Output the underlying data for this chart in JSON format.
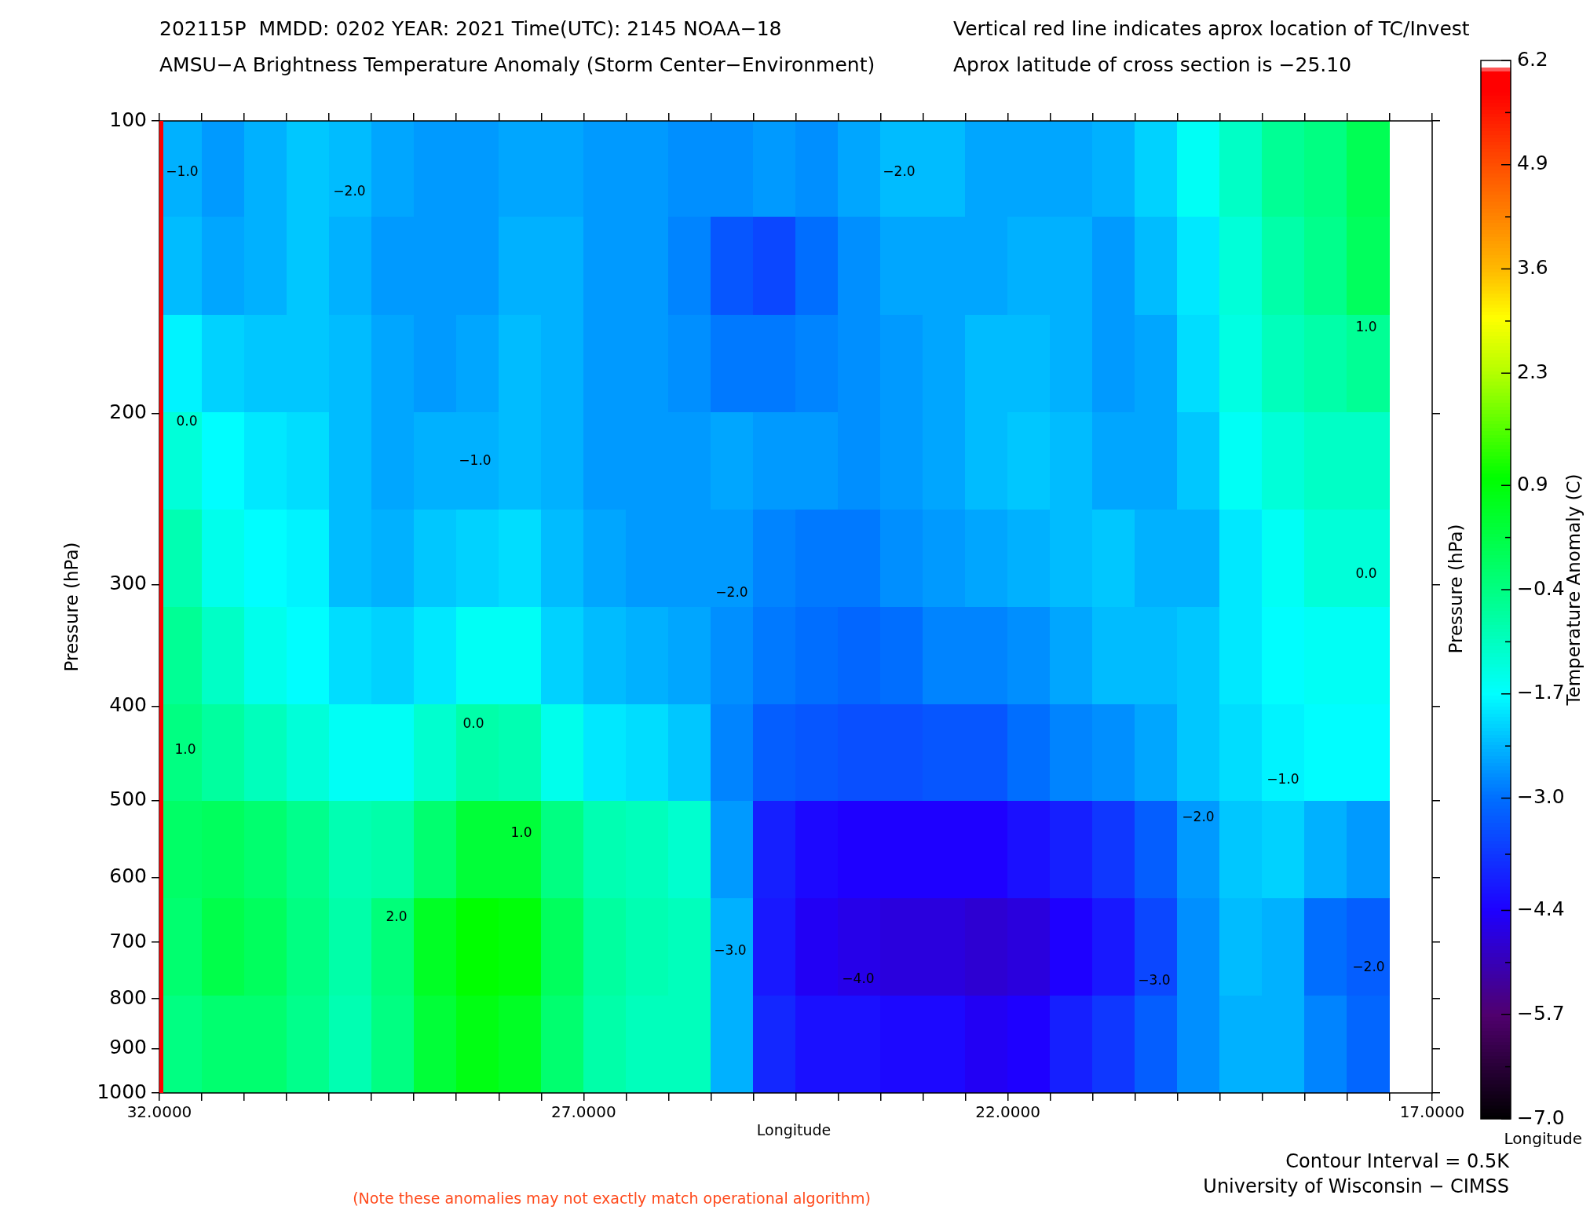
{
  "chart_data": {
    "type": "heatmap",
    "title": "202115P  MMDD: 0202 YEAR: 2021 Time(UTC): 2145 NOAA−18",
    "subtitle": "AMSU−A Brightness Temperature Anomaly (Storm Center−Environment)",
    "xlabel": "Longitude",
    "ylabel": "Pressure (hPa)",
    "y2label": "Pressure (hPa)",
    "clabel": "Temperature Anomaly (C)",
    "x": [
      31.75,
      31.25,
      30.75,
      30.25,
      29.75,
      29.25,
      28.75,
      28.25,
      27.75,
      27.25,
      26.75,
      26.25,
      25.75,
      25.25,
      24.75,
      24.25,
      23.75,
      23.25,
      22.75,
      22.25,
      21.75,
      21.25,
      20.75,
      20.25,
      19.75,
      19.25,
      18.75,
      18.25,
      17.75
    ],
    "y": [
      112,
      141,
      178,
      224,
      282,
      355,
      447,
      562,
      708,
      891
    ],
    "cells": [
      [
        -2.4,
        -2.6,
        -2.4,
        -2.2,
        -2.3,
        -2.5,
        -2.6,
        -2.6,
        -2.5,
        -2.5,
        -2.6,
        -2.6,
        -2.7,
        -2.7,
        -2.6,
        -2.7,
        -2.5,
        -2.3,
        -2.3,
        -2.5,
        -2.5,
        -2.5,
        -2.4,
        -2.1,
        -1.6,
        -1.1,
        -0.6,
        -0.4,
        0.1
      ],
      [
        -2.3,
        -2.5,
        -2.4,
        -2.2,
        -2.4,
        -2.6,
        -2.6,
        -2.6,
        -2.4,
        -2.4,
        -2.6,
        -2.6,
        -2.8,
        -3.3,
        -3.5,
        -3.0,
        -2.7,
        -2.5,
        -2.5,
        -2.5,
        -2.4,
        -2.4,
        -2.6,
        -2.3,
        -1.9,
        -1.3,
        -0.8,
        -0.5,
        0.0
      ],
      [
        -1.8,
        -2.1,
        -2.2,
        -2.2,
        -2.3,
        -2.5,
        -2.6,
        -2.5,
        -2.3,
        -2.4,
        -2.6,
        -2.6,
        -2.7,
        -2.9,
        -2.9,
        -2.8,
        -2.7,
        -2.6,
        -2.5,
        -2.3,
        -2.3,
        -2.4,
        -2.6,
        -2.5,
        -2.0,
        -1.4,
        -1.0,
        -0.8,
        -0.6
      ],
      [
        -1.3,
        -1.7,
        -1.9,
        -2.0,
        -2.3,
        -2.5,
        -2.4,
        -2.4,
        -2.3,
        -2.4,
        -2.6,
        -2.6,
        -2.6,
        -2.5,
        -2.6,
        -2.6,
        -2.7,
        -2.6,
        -2.5,
        -2.3,
        -2.2,
        -2.3,
        -2.5,
        -2.5,
        -2.2,
        -1.6,
        -1.3,
        -1.1,
        -1.1
      ],
      [
        -0.9,
        -1.5,
        -1.7,
        -1.8,
        -2.3,
        -2.4,
        -2.2,
        -2.1,
        -2.0,
        -2.3,
        -2.5,
        -2.6,
        -2.6,
        -2.6,
        -2.8,
        -2.9,
        -2.9,
        -2.7,
        -2.6,
        -2.5,
        -2.4,
        -2.3,
        -2.2,
        -2.4,
        -2.4,
        -1.9,
        -1.6,
        -1.3,
        -1.3
      ],
      [
        -0.6,
        -1.1,
        -1.5,
        -1.7,
        -2.0,
        -2.1,
        -1.9,
        -1.6,
        -1.6,
        -2.1,
        -2.3,
        -2.4,
        -2.5,
        -2.7,
        -2.9,
        -3.0,
        -3.1,
        -3.0,
        -2.8,
        -2.8,
        -2.7,
        -2.5,
        -2.3,
        -2.3,
        -2.2,
        -1.9,
        -1.7,
        -1.6,
        -1.6
      ],
      [
        -0.4,
        -0.7,
        -1.0,
        -1.3,
        -1.6,
        -1.6,
        -1.2,
        -0.8,
        -0.9,
        -1.5,
        -1.9,
        -2.0,
        -2.2,
        -2.8,
        -3.2,
        -3.3,
        -3.4,
        -3.4,
        -3.3,
        -3.3,
        -3.0,
        -2.8,
        -2.7,
        -2.5,
        -2.2,
        -2.0,
        -1.8,
        -1.7,
        -1.7
      ],
      [
        -0.1,
        0.0,
        -0.2,
        -0.5,
        -0.9,
        -0.8,
        -0.2,
        0.4,
        0.4,
        -0.4,
        -0.9,
        -1.0,
        -1.2,
        -2.6,
        -4.0,
        -4.3,
        -4.4,
        -4.4,
        -4.4,
        -4.4,
        -4.2,
        -4.0,
        -3.7,
        -3.2,
        -2.6,
        -2.2,
        -2.1,
        -2.4,
        -2.6
      ],
      [
        -0.2,
        0.2,
        0.0,
        -0.4,
        -0.8,
        -0.3,
        0.6,
        1.0,
        0.9,
        0.0,
        -0.7,
        -0.9,
        -1.0,
        -2.4,
        -4.1,
        -4.5,
        -4.6,
        -4.7,
        -4.7,
        -4.8,
        -4.7,
        -4.4,
        -4.1,
        -3.5,
        -2.7,
        -2.3,
        -2.4,
        -3.0,
        -3.2
      ],
      [
        -0.4,
        -0.2,
        -0.2,
        -0.5,
        -0.9,
        -0.4,
        0.4,
        0.8,
        0.6,
        -0.2,
        -0.8,
        -1.0,
        -1.0,
        -2.4,
        -3.9,
        -4.2,
        -4.2,
        -4.3,
        -4.3,
        -4.5,
        -4.4,
        -4.0,
        -3.7,
        -3.2,
        -2.7,
        -2.4,
        -2.4,
        -2.8,
        -3.1
      ]
    ],
    "xlim": [
      32,
      17
    ],
    "xticks": [
      {
        "value": 32,
        "label": "32.0000"
      },
      {
        "value": 31.5,
        "label": null
      },
      {
        "value": 31,
        "label": null
      },
      {
        "value": 30.5,
        "label": null
      },
      {
        "value": 30,
        "label": null
      },
      {
        "value": 29.5,
        "label": null
      },
      {
        "value": 29,
        "label": null
      },
      {
        "value": 28.5,
        "label": null
      },
      {
        "value": 28,
        "label": null
      },
      {
        "value": 27.5,
        "label": null
      },
      {
        "value": 27,
        "label": "27.0000"
      },
      {
        "value": 26.5,
        "label": null
      },
      {
        "value": 26,
        "label": null
      },
      {
        "value": 25.5,
        "label": null
      },
      {
        "value": 25,
        "label": null
      },
      {
        "value": 24.5,
        "label": null
      },
      {
        "value": 24,
        "label": null
      },
      {
        "value": 23.5,
        "label": null
      },
      {
        "value": 23,
        "label": null
      },
      {
        "value": 22.5,
        "label": null
      },
      {
        "value": 22,
        "label": "22.0000"
      },
      {
        "value": 21.5,
        "label": null
      },
      {
        "value": 21,
        "label": null
      },
      {
        "value": 20.5,
        "label": null
      },
      {
        "value": 20,
        "label": null
      },
      {
        "value": 19.5,
        "label": null
      },
      {
        "value": 19,
        "label": null
      },
      {
        "value": 18.5,
        "label": null
      },
      {
        "value": 18,
        "label": null
      },
      {
        "value": 17.5,
        "label": null
      },
      {
        "value": 17,
        "label": "17.0000"
      }
    ],
    "ylim": [
      1000,
      100
    ],
    "yticks": [
      100,
      200,
      300,
      400,
      500,
      600,
      700,
      800,
      900,
      1000
    ],
    "log": "y",
    "clim": [
      -7,
      6.2
    ],
    "cticks": [
      {
        "value": -7,
        "label": "−7.0"
      },
      {
        "value": -6.35,
        "label": null
      },
      {
        "value": -5.7,
        "label": "−5.7"
      },
      {
        "value": -5.05,
        "label": null
      },
      {
        "value": -4.4,
        "label": "−4.4"
      },
      {
        "value": -3.7,
        "label": null
      },
      {
        "value": -3.0,
        "label": "−3.0"
      },
      {
        "value": -2.35,
        "label": null
      },
      {
        "value": -1.7,
        "label": "−1.7"
      },
      {
        "value": -1.05,
        "label": null
      },
      {
        "value": -0.4,
        "label": "−0.4"
      },
      {
        "value": 0.25,
        "label": null
      },
      {
        "value": 0.9,
        "label": "0.9"
      },
      {
        "value": 1.6,
        "label": null
      },
      {
        "value": 2.3,
        "label": "2.3"
      },
      {
        "value": 2.95,
        "label": null
      },
      {
        "value": 3.6,
        "label": "3.6"
      },
      {
        "value": 4.25,
        "label": null
      },
      {
        "value": 4.9,
        "label": "4.9"
      },
      {
        "value": 5.55,
        "label": null
      },
      {
        "value": 6.2,
        "label": "6.2"
      }
    ],
    "ref_lines": [
      {
        "axis": "x",
        "value": 32,
        "color": "#ff0000"
      }
    ],
    "annotations": [
      "Vertical red line indicates aprox location of TC/Invest",
      "Aprox latitude of cross section is −25.10",
      "Longitude",
      "Contour Interval = 0.5K",
      "University of Wisconsin − CIMSS",
      "(Note these anomalies may not exactly match operational algorithm)",
      "−1.0",
      "−2.0",
      "−2.0",
      "1.0",
      "0.0",
      "−1.0",
      "0.0",
      "−2.0",
      "1.0",
      "0.0",
      "1.0",
      "2.0",
      "−3.0",
      "−4.0",
      "−3.0",
      "−2.0",
      "−1.0",
      "−2.0"
    ]
  }
}
